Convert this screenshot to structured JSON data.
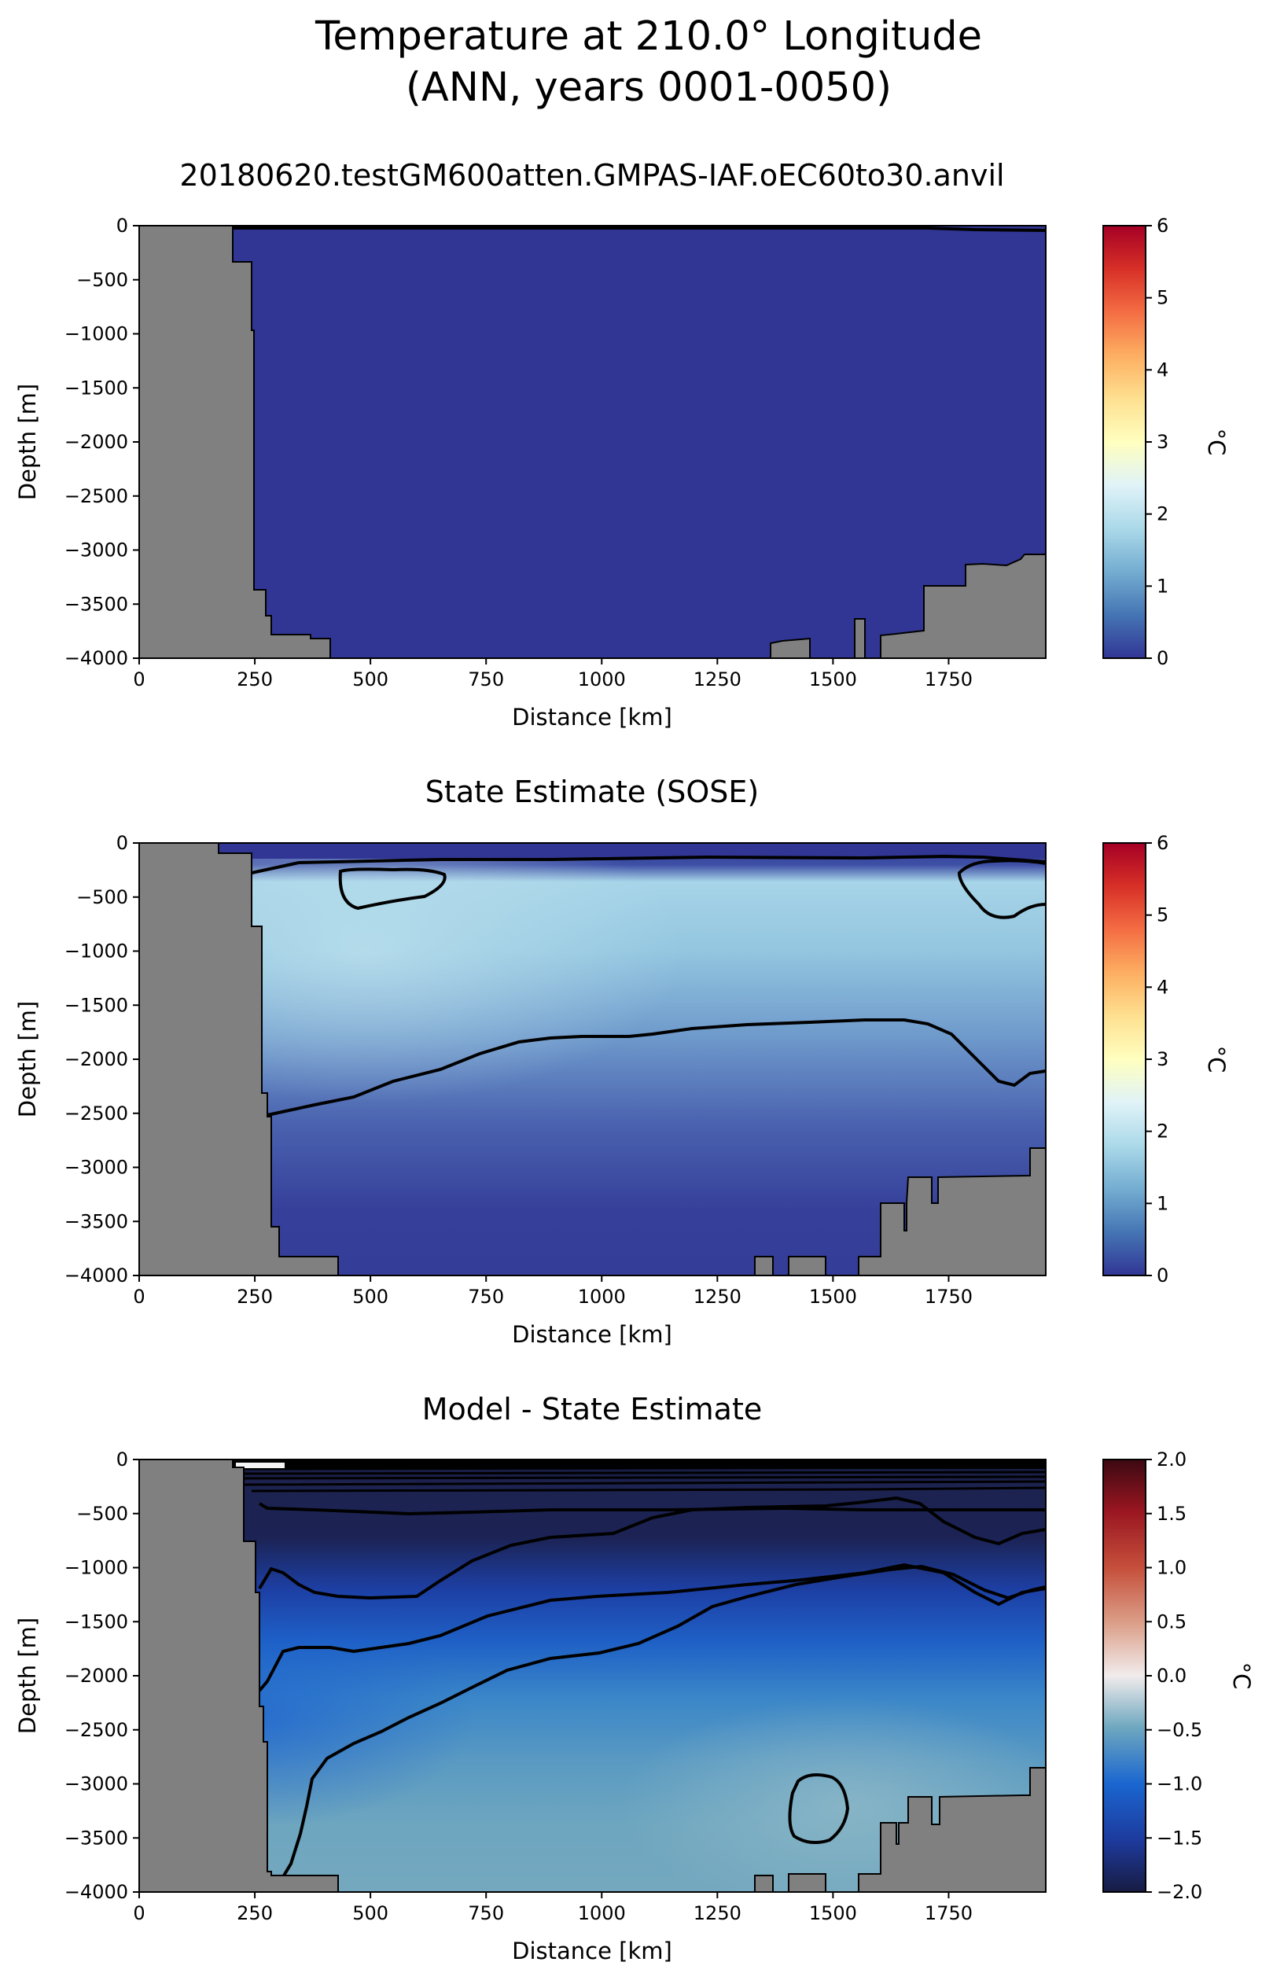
{
  "figure": {
    "title_line1": "Temperature at 210.0° Longitude",
    "title_line2": "(ANN, years 0001-0050)"
  },
  "chart_data": [
    {
      "type": "heatmap",
      "title": "20180620.testGM600atten.GMPAS-IAF.oEC60to30.anvil",
      "xlabel": "Distance [km]",
      "ylabel": "Depth [m]",
      "xlim": [
        0,
        1960
      ],
      "ylim": [
        -4000,
        0
      ],
      "xticks": [
        "0",
        "250",
        "500",
        "750",
        "1000",
        "1250",
        "1500",
        "1750"
      ],
      "yticks": [
        "0",
        "−500",
        "−1000",
        "−1500",
        "−2000",
        "−2500",
        "−3000",
        "−3500",
        "−4000"
      ],
      "colorbar": {
        "label": "°C",
        "min": 0,
        "max": 6,
        "ticks": [
          "0",
          "1",
          "2",
          "3",
          "4",
          "5",
          "6"
        ],
        "colormap": "RdYlBu_r"
      },
      "field_description": "nearly uniform below 0 °C across the whole section",
      "land_color": "#808080",
      "contour_color": "#000000"
    },
    {
      "type": "heatmap",
      "title": "State Estimate (SOSE)",
      "xlabel": "Distance [km]",
      "ylabel": "Depth [m]",
      "xlim": [
        0,
        1960
      ],
      "ylim": [
        -4000,
        0
      ],
      "xticks": [
        "0",
        "250",
        "500",
        "750",
        "1000",
        "1250",
        "1500",
        "1750"
      ],
      "yticks": [
        "0",
        "−500",
        "−1000",
        "−1500",
        "−2000",
        "−2500",
        "−3000",
        "−3500",
        "−4000"
      ],
      "colorbar": {
        "label": "°C",
        "min": 0,
        "max": 6,
        "ticks": [
          "0",
          "1",
          "2",
          "3",
          "4",
          "5",
          "6"
        ],
        "colormap": "RdYlBu_r"
      },
      "field_description": "cold surface layer, warm (~1.5-2 °C) water 200-1500 m, cooling toward 0.2 °C at depth",
      "land_color": "#808080",
      "contour_color": "#000000"
    },
    {
      "type": "heatmap",
      "title": "Model - State Estimate",
      "xlabel": "Distance [km]",
      "ylabel": "Depth [m]",
      "xlim": [
        0,
        1960
      ],
      "ylim": [
        -4000,
        0
      ],
      "xticks": [
        "0",
        "250",
        "500",
        "750",
        "1000",
        "1250",
        "1500",
        "1750"
      ],
      "yticks": [
        "0",
        "−500",
        "−1000",
        "−1500",
        "−2000",
        "−2500",
        "−3000",
        "−3500",
        "−4000"
      ],
      "colorbar": {
        "label": "°C",
        "min": -2.0,
        "max": 2.0,
        "ticks": [
          "−2.0",
          "−1.5",
          "−1.0",
          "−0.5",
          "0.0",
          "0.5",
          "1.0",
          "1.5",
          "2.0"
        ],
        "colormap": "balance"
      },
      "field_description": "negative difference everywhere, strongest (~−2 °C) near 500-1000 m, weakening to ~−0.5 °C at depth",
      "land_color": "#808080",
      "contour_color": "#000000"
    }
  ]
}
